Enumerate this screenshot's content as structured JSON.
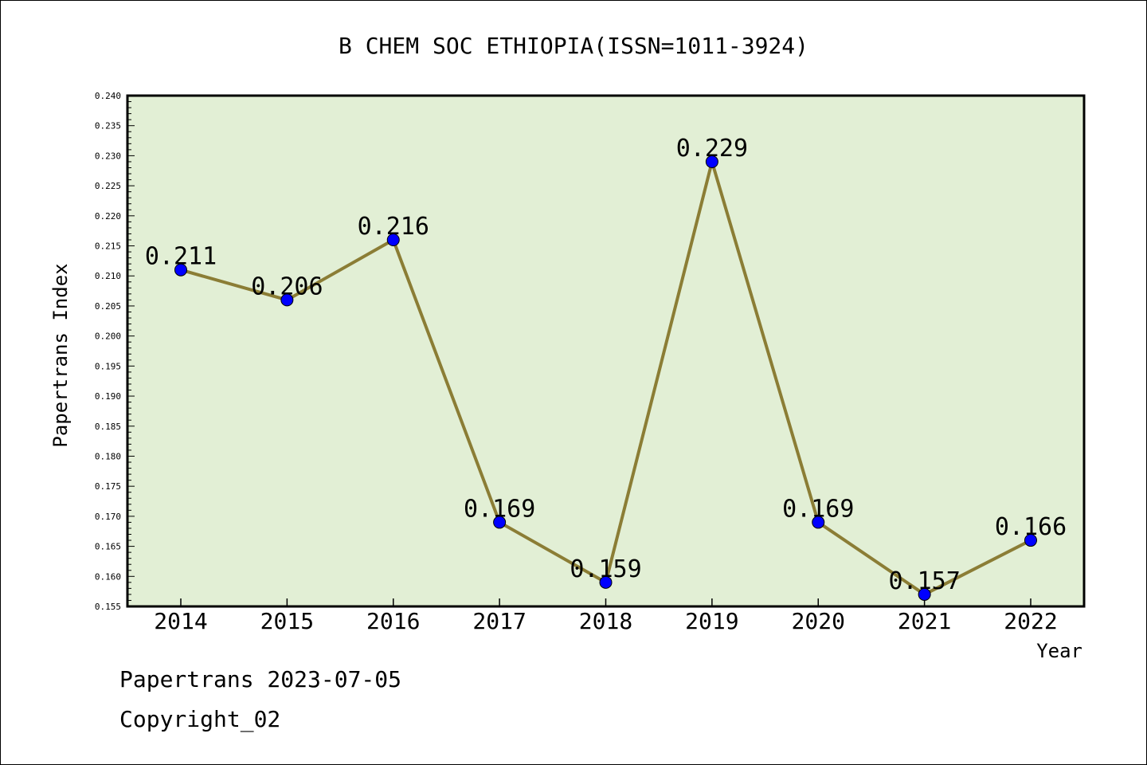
{
  "chart_data": {
    "type": "line",
    "title": "B CHEM SOC ETHIOPIA(ISSN=1011-3924)",
    "xlabel": "Year",
    "ylabel": "Papertrans Index",
    "categories": [
      "2014",
      "2015",
      "2016",
      "2017",
      "2018",
      "2019",
      "2020",
      "2021",
      "2022"
    ],
    "series": [
      {
        "values": [
          0.211,
          0.206,
          0.216,
          0.169,
          0.159,
          0.229,
          0.169,
          0.157,
          0.166
        ],
        "data_labels": [
          "0.211",
          "0.206",
          "0.216",
          "0.169",
          "0.159",
          "0.229",
          "0.169",
          "0.157",
          "0.166"
        ]
      }
    ],
    "ylim": [
      0.155,
      0.24
    ],
    "y_ticks": [
      "0.155",
      "0.160",
      "0.165",
      "0.170",
      "0.175",
      "0.180",
      "0.185",
      "0.190",
      "0.195",
      "0.200",
      "0.205",
      "0.210",
      "0.215",
      "0.220",
      "0.225",
      "0.230",
      "0.235",
      "0.240"
    ],
    "grid": false,
    "legend": "none",
    "colors": {
      "plot_background": "#e2efd5",
      "line": "#8b7d35",
      "marker": "#0000ff"
    }
  },
  "footer": {
    "source": "Papertrans 2023-07-05",
    "copyright": "Copyright_02"
  }
}
